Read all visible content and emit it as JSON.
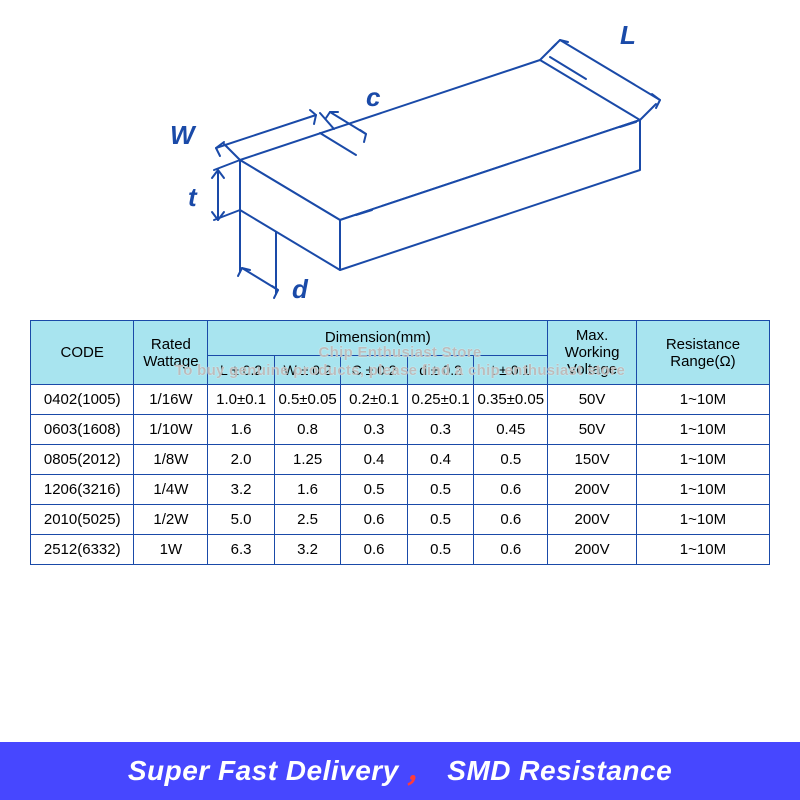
{
  "diagram": {
    "labels": {
      "L": "L",
      "W": "W",
      "c": "c",
      "t": "t",
      "d": "d"
    },
    "stroke": "#1a4aa8",
    "stroke_width": 2
  },
  "watermark": {
    "line1": "Chip Enthusiast Store",
    "line2": "To buy genuine products, please find a chip enthusiast store"
  },
  "table": {
    "header_bg": "#a8e4ef",
    "border_color": "#1a4aa8",
    "columns_top": [
      "CODE",
      "Rated Wattage",
      "Dimension(mm)",
      "Max. Working Voltage",
      "Resistance Range(Ω)"
    ],
    "dimension_sub": [
      "L ± 0.2",
      "W ± 0.2",
      "C ± 0.2",
      "d ± 0.2",
      "t ± 0.1"
    ],
    "rows": [
      [
        "0402(1005)",
        "1/16W",
        "1.0±0.1",
        "0.5±0.05",
        "0.2±0.1",
        "0.25±0.1",
        "0.35±0.05",
        "50V",
        "1~10M"
      ],
      [
        "0603(1608)",
        "1/10W",
        "1.6",
        "0.8",
        "0.3",
        "0.3",
        "0.45",
        "50V",
        "1~10M"
      ],
      [
        "0805(2012)",
        "1/8W",
        "2.0",
        "1.25",
        "0.4",
        "0.4",
        "0.5",
        "150V",
        "1~10M"
      ],
      [
        "1206(3216)",
        "1/4W",
        "3.2",
        "1.6",
        "0.5",
        "0.5",
        "0.6",
        "200V",
        "1~10M"
      ],
      [
        "2010(5025)",
        "1/2W",
        "5.0",
        "2.5",
        "0.6",
        "0.5",
        "0.6",
        "200V",
        "1~10M"
      ],
      [
        "2512(6332)",
        "1W",
        "6.3",
        "3.2",
        "0.6",
        "0.5",
        "0.6",
        "200V",
        "1~10M"
      ]
    ],
    "col_widths_pct": [
      14,
      10,
      9,
      9,
      9,
      9,
      10,
      12,
      18
    ]
  },
  "footer": {
    "left": "Super Fast Delivery",
    "right": "SMD Resistance",
    "comma": "，"
  }
}
